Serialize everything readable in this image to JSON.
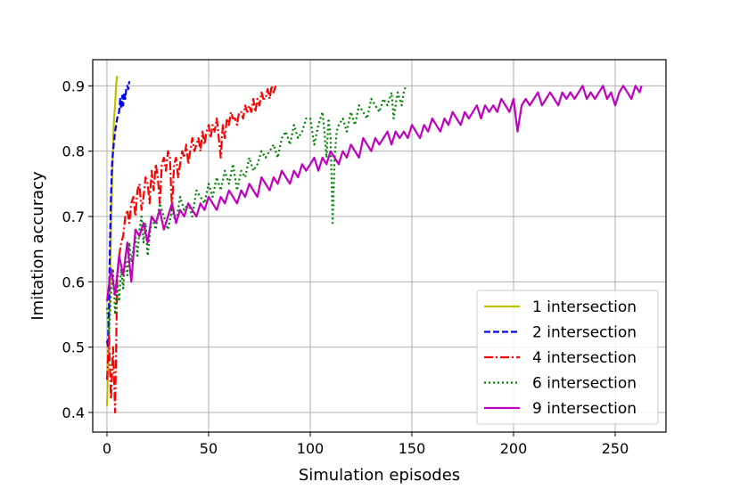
{
  "chart_data": {
    "type": "line",
    "title": "",
    "xlabel": "Simulation episodes",
    "ylabel": "Imitation accuracy",
    "xlim": [
      -7,
      275
    ],
    "ylim": [
      0.37,
      0.94
    ],
    "xticks": [
      0,
      50,
      100,
      150,
      200,
      250
    ],
    "xtick_labels": [
      "0",
      "50",
      "100",
      "150",
      "200",
      "250"
    ],
    "yticks": [
      0.4,
      0.5,
      0.6,
      0.7,
      0.8,
      0.9
    ],
    "ytick_labels": [
      "0.4",
      "0.5",
      "0.6",
      "0.7",
      "0.8",
      "0.9"
    ],
    "grid": true,
    "legend_position": "lower-right",
    "series": [
      {
        "name": "1 intersection",
        "color": "#bfbf00",
        "dash": "solid",
        "x": [
          0,
          0.5,
          1,
          1.5,
          2,
          2.5,
          3,
          3.5,
          4,
          4.5,
          5
        ],
        "y": [
          0.41,
          0.46,
          0.52,
          0.6,
          0.68,
          0.75,
          0.81,
          0.85,
          0.87,
          0.9,
          0.915
        ]
      },
      {
        "name": "2 intersection",
        "color": "#0000ff",
        "dash": "dashed",
        "x": [
          0,
          0.5,
          1,
          1.5,
          2,
          2.5,
          3,
          4,
          5,
          6,
          6.5,
          7,
          7.5,
          8,
          8.5,
          9,
          9.5,
          10,
          10.5,
          11
        ],
        "y": [
          0.51,
          0.5,
          0.56,
          0.66,
          0.73,
          0.78,
          0.8,
          0.83,
          0.85,
          0.86,
          0.88,
          0.865,
          0.885,
          0.87,
          0.89,
          0.88,
          0.895,
          0.9,
          0.895,
          0.907
        ]
      },
      {
        "name": "4 intersection",
        "color": "#ff0000",
        "dash": "dashdot",
        "x": [
          0,
          1,
          2,
          3,
          4,
          5,
          6,
          7,
          8,
          9,
          10,
          11,
          12,
          13,
          14,
          15,
          16,
          17,
          18,
          19,
          20,
          21,
          22,
          23,
          24,
          25,
          26,
          27,
          28,
          29,
          30,
          31,
          32,
          33,
          34,
          35,
          36,
          37,
          38,
          39,
          40,
          41,
          42,
          43,
          44,
          45,
          46,
          47,
          48,
          49,
          50,
          51,
          52,
          53,
          54,
          55,
          56,
          57,
          58,
          59,
          60,
          61,
          62,
          63,
          64,
          65,
          66,
          67,
          68,
          69,
          70,
          71,
          72,
          73,
          74,
          75,
          76,
          77,
          78,
          79,
          80,
          81,
          82,
          83
        ],
        "y": [
          0.45,
          0.52,
          0.42,
          0.5,
          0.4,
          0.6,
          0.64,
          0.66,
          0.67,
          0.7,
          0.71,
          0.69,
          0.72,
          0.73,
          0.7,
          0.74,
          0.75,
          0.71,
          0.73,
          0.76,
          0.75,
          0.72,
          0.77,
          0.74,
          0.78,
          0.76,
          0.72,
          0.78,
          0.79,
          0.77,
          0.8,
          0.79,
          0.71,
          0.78,
          0.79,
          0.76,
          0.78,
          0.8,
          0.79,
          0.81,
          0.78,
          0.8,
          0.82,
          0.8,
          0.81,
          0.82,
          0.8,
          0.83,
          0.81,
          0.83,
          0.84,
          0.82,
          0.84,
          0.83,
          0.85,
          0.82,
          0.79,
          0.84,
          0.82,
          0.85,
          0.84,
          0.86,
          0.85,
          0.85,
          0.84,
          0.86,
          0.86,
          0.85,
          0.87,
          0.86,
          0.87,
          0.86,
          0.88,
          0.86,
          0.88,
          0.87,
          0.89,
          0.88,
          0.88,
          0.895,
          0.88,
          0.9,
          0.89,
          0.9
        ]
      },
      {
        "name": "6 intersection",
        "color": "#008000",
        "dash": "dotted",
        "x": [
          0,
          1,
          2,
          3,
          4,
          5,
          6,
          7,
          8,
          9,
          10,
          11,
          12,
          13,
          14,
          15,
          16,
          17,
          18,
          19,
          20,
          22,
          24,
          26,
          28,
          30,
          32,
          34,
          36,
          38,
          40,
          42,
          44,
          46,
          48,
          50,
          52,
          54,
          56,
          58,
          60,
          62,
          64,
          66,
          68,
          70,
          72,
          74,
          76,
          78,
          80,
          82,
          84,
          86,
          88,
          90,
          92,
          94,
          96,
          98,
          100,
          102,
          104,
          106,
          107,
          108,
          109,
          110,
          111,
          112,
          113,
          114,
          116,
          118,
          120,
          122,
          124,
          126,
          128,
          130,
          132,
          134,
          136,
          138,
          140,
          141,
          142,
          143,
          144,
          145,
          146,
          147
        ],
        "y": [
          0.56,
          0.52,
          0.58,
          0.62,
          0.55,
          0.6,
          0.57,
          0.62,
          0.59,
          0.64,
          0.61,
          0.66,
          0.63,
          0.65,
          0.67,
          0.64,
          0.68,
          0.7,
          0.66,
          0.69,
          0.64,
          0.7,
          0.68,
          0.72,
          0.7,
          0.68,
          0.71,
          0.69,
          0.73,
          0.71,
          0.72,
          0.7,
          0.74,
          0.73,
          0.72,
          0.75,
          0.73,
          0.76,
          0.74,
          0.77,
          0.75,
          0.78,
          0.74,
          0.77,
          0.76,
          0.79,
          0.77,
          0.78,
          0.8,
          0.79,
          0.8,
          0.81,
          0.79,
          0.82,
          0.83,
          0.81,
          0.84,
          0.82,
          0.83,
          0.85,
          0.85,
          0.81,
          0.84,
          0.86,
          0.83,
          0.79,
          0.85,
          0.82,
          0.69,
          0.79,
          0.83,
          0.84,
          0.85,
          0.83,
          0.86,
          0.84,
          0.87,
          0.86,
          0.85,
          0.88,
          0.87,
          0.86,
          0.88,
          0.87,
          0.89,
          0.85,
          0.87,
          0.89,
          0.88,
          0.87,
          0.89,
          0.9
        ]
      },
      {
        "name": "9 intersection",
        "color": "#bf00bf",
        "dash": "solid",
        "x": [
          0,
          2,
          4,
          6,
          8,
          10,
          12,
          14,
          16,
          18,
          20,
          22,
          24,
          26,
          28,
          30,
          32,
          34,
          36,
          38,
          40,
          42,
          44,
          46,
          48,
          50,
          52,
          54,
          56,
          58,
          60,
          62,
          64,
          66,
          68,
          70,
          72,
          74,
          76,
          78,
          80,
          82,
          84,
          86,
          88,
          90,
          92,
          94,
          96,
          98,
          100,
          102,
          104,
          106,
          108,
          110,
          112,
          114,
          116,
          118,
          120,
          122,
          124,
          126,
          128,
          130,
          132,
          134,
          136,
          138,
          140,
          142,
          144,
          146,
          148,
          150,
          152,
          154,
          156,
          158,
          160,
          162,
          164,
          166,
          168,
          170,
          172,
          174,
          176,
          178,
          180,
          182,
          184,
          186,
          188,
          190,
          192,
          194,
          196,
          198,
          200,
          202,
          204,
          206,
          208,
          210,
          212,
          214,
          216,
          218,
          220,
          222,
          224,
          226,
          228,
          230,
          232,
          234,
          236,
          238,
          240,
          242,
          244,
          246,
          248,
          250,
          252,
          254,
          256,
          258,
          260,
          262,
          263
        ],
        "y": [
          0.57,
          0.62,
          0.58,
          0.64,
          0.61,
          0.66,
          0.6,
          0.68,
          0.67,
          0.69,
          0.66,
          0.7,
          0.69,
          0.71,
          0.68,
          0.7,
          0.72,
          0.69,
          0.71,
          0.7,
          0.72,
          0.71,
          0.7,
          0.72,
          0.71,
          0.73,
          0.72,
          0.71,
          0.73,
          0.72,
          0.74,
          0.73,
          0.72,
          0.74,
          0.73,
          0.75,
          0.74,
          0.73,
          0.76,
          0.75,
          0.74,
          0.76,
          0.75,
          0.77,
          0.76,
          0.75,
          0.77,
          0.76,
          0.78,
          0.77,
          0.78,
          0.79,
          0.77,
          0.79,
          0.78,
          0.8,
          0.79,
          0.78,
          0.8,
          0.79,
          0.81,
          0.8,
          0.79,
          0.82,
          0.81,
          0.8,
          0.82,
          0.81,
          0.82,
          0.83,
          0.81,
          0.83,
          0.82,
          0.83,
          0.82,
          0.84,
          0.83,
          0.82,
          0.84,
          0.83,
          0.85,
          0.84,
          0.83,
          0.85,
          0.84,
          0.86,
          0.85,
          0.84,
          0.86,
          0.85,
          0.86,
          0.87,
          0.85,
          0.87,
          0.86,
          0.87,
          0.86,
          0.88,
          0.87,
          0.86,
          0.88,
          0.83,
          0.87,
          0.88,
          0.87,
          0.88,
          0.89,
          0.87,
          0.88,
          0.89,
          0.88,
          0.87,
          0.89,
          0.88,
          0.89,
          0.88,
          0.89,
          0.9,
          0.88,
          0.89,
          0.88,
          0.89,
          0.9,
          0.88,
          0.89,
          0.87,
          0.89,
          0.9,
          0.89,
          0.88,
          0.9,
          0.89,
          0.9
        ]
      }
    ]
  }
}
